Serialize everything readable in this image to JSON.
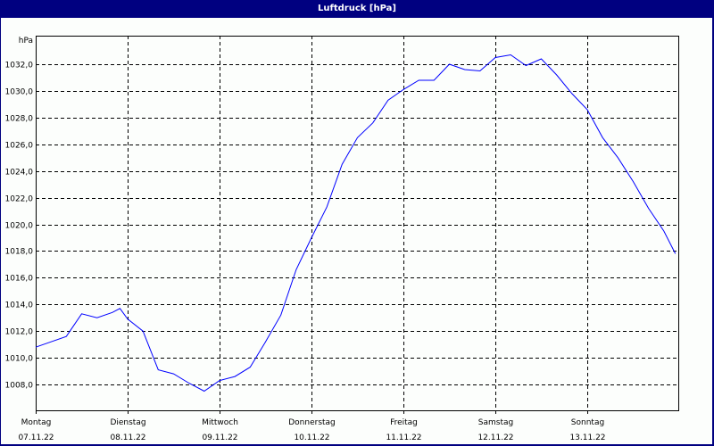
{
  "window": {
    "title": "Luftdruck [hPa]"
  },
  "colors": {
    "titlebar": "#000080",
    "background": "#fcfefc",
    "line": "#0000ff",
    "grid": "#000000"
  },
  "chart_data": {
    "type": "line",
    "title": "Luftdruck [hPa]",
    "xlabel": "",
    "ylabel": "hPa",
    "ylim": [
      1006.0,
      1034.1
    ],
    "grid": true,
    "legend": null,
    "y_ticks": [
      "1032,0",
      "1030,0",
      "1028,0",
      "1026,0",
      "1024,0",
      "1022,0",
      "1020,0",
      "1018,0",
      "1016,0",
      "1014,0",
      "1012,0",
      "1010,0",
      "1008,0"
    ],
    "y_tick_values": [
      1032,
      1030,
      1028,
      1026,
      1024,
      1022,
      1020,
      1018,
      1016,
      1014,
      1012,
      1010,
      1008
    ],
    "x_ticks": [
      {
        "day": "Montag",
        "date": "07.11.22"
      },
      {
        "day": "Dienstag",
        "date": "08.11.22"
      },
      {
        "day": "Mittwoch",
        "date": "09.11.22"
      },
      {
        "day": "Donnerstag",
        "date": "10.11.22"
      },
      {
        "day": "Freitag",
        "date": "11.11.22"
      },
      {
        "day": "Samstag",
        "date": "12.11.22"
      },
      {
        "day": "Sonntag",
        "date": "13.11.22"
      }
    ],
    "series": [
      {
        "name": "Luftdruck",
        "x_hours": [
          0,
          4,
          8,
          12,
          16,
          20,
          22,
          24,
          28,
          32,
          36,
          40,
          44,
          48,
          52,
          56,
          60,
          64,
          68,
          72,
          76,
          80,
          84,
          88,
          92,
          96,
          100,
          104,
          108,
          112,
          116,
          120,
          124,
          128,
          132,
          136,
          140,
          144,
          148,
          152,
          156,
          160,
          164,
          167
        ],
        "values": [
          1010.8,
          1011.2,
          1011.6,
          1013.3,
          1013.0,
          1013.4,
          1013.7,
          1012.9,
          1012.0,
          1009.1,
          1008.8,
          1008.1,
          1007.5,
          1008.3,
          1008.6,
          1009.3,
          1011.2,
          1013.2,
          1016.6,
          1019.0,
          1021.3,
          1024.5,
          1026.5,
          1027.6,
          1029.3,
          1030.1,
          1030.8,
          1030.8,
          1032.0,
          1031.6,
          1031.5,
          1032.5,
          1032.7,
          1031.9,
          1032.4,
          1031.2,
          1029.8,
          1028.6,
          1026.5,
          1025.0,
          1023.2,
          1021.2,
          1019.5,
          1017.8
        ]
      }
    ]
  }
}
